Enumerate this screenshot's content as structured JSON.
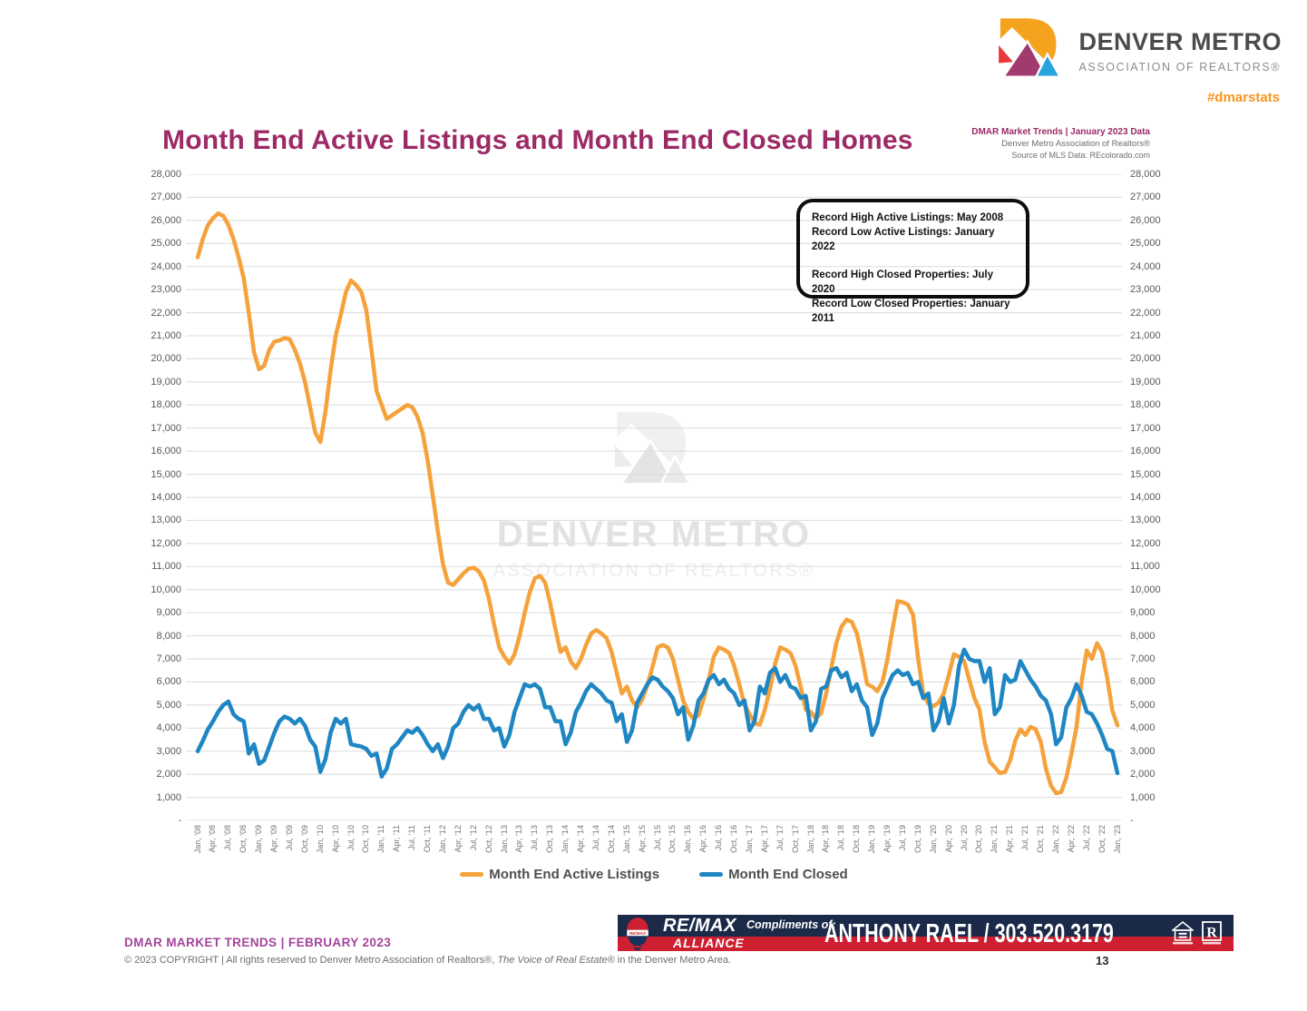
{
  "header": {
    "brand_title": "DENVER METRO",
    "brand_subtitle": "ASSOCIATION OF REALTORS®",
    "hashtag": "#dmarstats"
  },
  "title": "Month End Active Listings and Month End Closed Homes",
  "meta": {
    "line1": "DMAR Market Trends | January 2023 Data",
    "line2": "Denver Metro Association of Realtors®",
    "line3": "Source of MLS Data: REcolorado.com"
  },
  "record_box": {
    "lines": [
      "Record High Active Listings: May 2008",
      "Record Low Active Listings: January 2022",
      "",
      "Record High Closed Properties: July 2020",
      "Record Low Closed Properties: January 2011"
    ]
  },
  "watermark": {
    "title": "DENVER METRO",
    "subtitle": "ASSOCIATION OF REALTORS®"
  },
  "legend": {
    "active": "Month End Active Listings",
    "closed": "Month End Closed"
  },
  "footer": {
    "trends": "DMAR MARKET TRENDS | FEBRUARY 2023",
    "copyright_prefix": "© 2023 COPYRIGHT | All rights reserved to Denver Metro Association of Realtors®, ",
    "copyright_italic": "The Voice of Real Estate®",
    "copyright_suffix": " in the Denver Metro Area.",
    "page_number": "13"
  },
  "banner": {
    "remax": "RE/MAX",
    "alliance": "ALLIANCE",
    "compliments": "Compliments of:",
    "agent": "ANTHONY RAEL / 303.520.3179"
  },
  "colors": {
    "active_line": "#F5A23C",
    "closed_line": "#1E86C2",
    "title_magenta": "#9C2A66",
    "hashtag_orange": "#F7941E",
    "footer_purple": "#A4449B",
    "gridline": "#DBDBDB",
    "axis_text": "#595959",
    "banner_navy": "#1B2A49",
    "banner_red": "#CE2030"
  },
  "chart_data": {
    "type": "line",
    "title": "Month End Active Listings and Month End Closed Homes",
    "x_unit": "month",
    "x_range": [
      "Jan 2008",
      "Jan 2023"
    ],
    "ylim": [
      0,
      28000
    ],
    "y_tick_step": 1000,
    "grid": true,
    "legend_position": "bottom",
    "y_tick_labels": [
      "-",
      "1,000",
      "2,000",
      "3,000",
      "4,000",
      "5,000",
      "6,000",
      "7,000",
      "8,000",
      "9,000",
      "10,000",
      "11,000",
      "12,000",
      "13,000",
      "14,000",
      "15,000",
      "16,000",
      "17,000",
      "18,000",
      "19,000",
      "20,000",
      "21,000",
      "22,000",
      "23,000",
      "24,000",
      "25,000",
      "26,000",
      "27,000",
      "28,000"
    ],
    "x_tick_labels": [
      "Jan, '08",
      "Apr, '08",
      "Jul, '08",
      "Oct, '08",
      "Jan, '09",
      "Apr, '09",
      "Jul, '09",
      "Oct, '09",
      "Jan, '10",
      "Apr, '10",
      "Jul, '10",
      "Oct, '10",
      "Jan, '11",
      "Apr, '11",
      "Jul, '11",
      "Oct, '11",
      "Jan, '12",
      "Apr, '12",
      "Jul, '12",
      "Oct, '12",
      "Jan, '13",
      "Apr, '13",
      "Jul, '13",
      "Oct, '13",
      "Jan, '14",
      "Apr, '14",
      "Jul, '14",
      "Oct, '14",
      "Jan, '15",
      "Apr, '15",
      "Jul, '15",
      "Oct, '15",
      "Jan, '16",
      "Apr, '16",
      "Jul, '16",
      "Oct, '16",
      "Jan, '17",
      "Apr, '17",
      "Jul, '17",
      "Oct, '17",
      "Jan, '18",
      "Apr, '18",
      "Jul, '18",
      "Oct, '18",
      "Jan, '19",
      "Apr, '19",
      "Jul, '19",
      "Oct, '19",
      "Jan, '20",
      "Apr, '20",
      "Jul, '20",
      "Oct, '20",
      "Jan, '21",
      "Apr, '21",
      "Jul, '21",
      "Oct, '21",
      "Jan, '22",
      "Apr, '22",
      "Jul, '22",
      "Oct, '22",
      "Jan, '23"
    ],
    "annotations": [
      "Record High Active Listings: May 2008",
      "Record Low Active Listings: January 2022",
      "Record High Closed Properties: July 2020",
      "Record Low Closed Properties: January 2011"
    ],
    "series": [
      {
        "name": "Month End Active Listings",
        "color": "#F5A23C",
        "values": [
          24400,
          25200,
          25800,
          26100,
          26300,
          26200,
          25800,
          25200,
          24400,
          23500,
          22000,
          20300,
          19550,
          19700,
          20400,
          20750,
          20800,
          20900,
          20850,
          20400,
          19800,
          19000,
          17900,
          16800,
          16400,
          17700,
          19500,
          21000,
          21900,
          22900,
          23400,
          23200,
          22900,
          22100,
          20400,
          18600,
          18000,
          17400,
          17550,
          17700,
          17850,
          18000,
          17900,
          17500,
          16800,
          15600,
          14100,
          12500,
          11100,
          10300,
          10200,
          10450,
          10700,
          10900,
          10950,
          10800,
          10400,
          9600,
          8500,
          7500,
          7100,
          6800,
          7200,
          8000,
          9000,
          9900,
          10500,
          10600,
          10300,
          9400,
          8300,
          7300,
          7500,
          6900,
          6600,
          7000,
          7600,
          8100,
          8250,
          8100,
          7900,
          7300,
          6400,
          5500,
          5800,
          5200,
          4900,
          5250,
          5850,
          6650,
          7500,
          7600,
          7500,
          7000,
          6100,
          5200,
          4700,
          4400,
          4550,
          5250,
          6100,
          7100,
          7500,
          7400,
          7250,
          6700,
          5900,
          5000,
          4600,
          4200,
          4150,
          4800,
          5700,
          6800,
          7500,
          7400,
          7250,
          6700,
          5800,
          4800,
          4700,
          4400,
          4650,
          5500,
          6600,
          7700,
          8400,
          8700,
          8600,
          8100,
          7100,
          5900,
          5800,
          5600,
          6000,
          7000,
          8300,
          9500,
          9450,
          9350,
          8900,
          7000,
          5500,
          5050,
          4950,
          5100,
          5500,
          6300,
          7200,
          7100,
          6900,
          6100,
          5300,
          4800,
          3400,
          2550,
          2300,
          2050,
          2100,
          2600,
          3450,
          3950,
          3700,
          4050,
          3950,
          3400,
          2250,
          1500,
          1180,
          1230,
          1860,
          2900,
          4050,
          6050,
          7360,
          7000,
          7680,
          7290,
          6180,
          4760,
          4120
        ]
      },
      {
        "name": "Month End Closed",
        "color": "#1E86C2",
        "values": [
          3000,
          3450,
          3950,
          4300,
          4700,
          5000,
          5150,
          4600,
          4400,
          4300,
          2900,
          3300,
          2450,
          2600,
          3200,
          3800,
          4300,
          4500,
          4400,
          4200,
          4400,
          4100,
          3500,
          3200,
          2100,
          2650,
          3800,
          4400,
          4200,
          4400,
          3300,
          3250,
          3200,
          3100,
          2800,
          2900,
          1900,
          2250,
          3100,
          3300,
          3600,
          3900,
          3800,
          4000,
          3700,
          3300,
          3000,
          3300,
          2700,
          3200,
          4000,
          4200,
          4700,
          5000,
          4800,
          5000,
          4400,
          4400,
          3900,
          4000,
          3200,
          3700,
          4700,
          5300,
          5900,
          5800,
          5900,
          5700,
          4900,
          4900,
          4300,
          4300,
          3300,
          3800,
          4700,
          5100,
          5600,
          5900,
          5700,
          5500,
          5200,
          5100,
          4300,
          4600,
          3400,
          3900,
          5100,
          5500,
          5900,
          6200,
          6100,
          5800,
          5600,
          5300,
          4600,
          4900,
          3500,
          4100,
          5200,
          5500,
          6100,
          6300,
          5900,
          6100,
          5700,
          5500,
          5000,
          5200,
          3900,
          4300,
          5800,
          5500,
          6400,
          6600,
          6000,
          6300,
          5800,
          5700,
          5300,
          5400,
          3900,
          4300,
          5700,
          5800,
          6500,
          6600,
          6200,
          6400,
          5600,
          5900,
          5200,
          4900,
          3700,
          4200,
          5300,
          5800,
          6300,
          6500,
          6300,
          6400,
          5900,
          6000,
          5300,
          5500,
          3900,
          4300,
          5300,
          4200,
          5000,
          6700,
          7400,
          7000,
          6900,
          6900,
          6000,
          6600,
          4600,
          4900,
          6300,
          6000,
          6100,
          6900,
          6500,
          6100,
          5800,
          5400,
          5200,
          4600,
          3300,
          3600,
          4900,
          5300,
          5900,
          5400,
          4700,
          4600,
          4200,
          3700,
          3100,
          3000,
          2050
        ]
      }
    ]
  }
}
